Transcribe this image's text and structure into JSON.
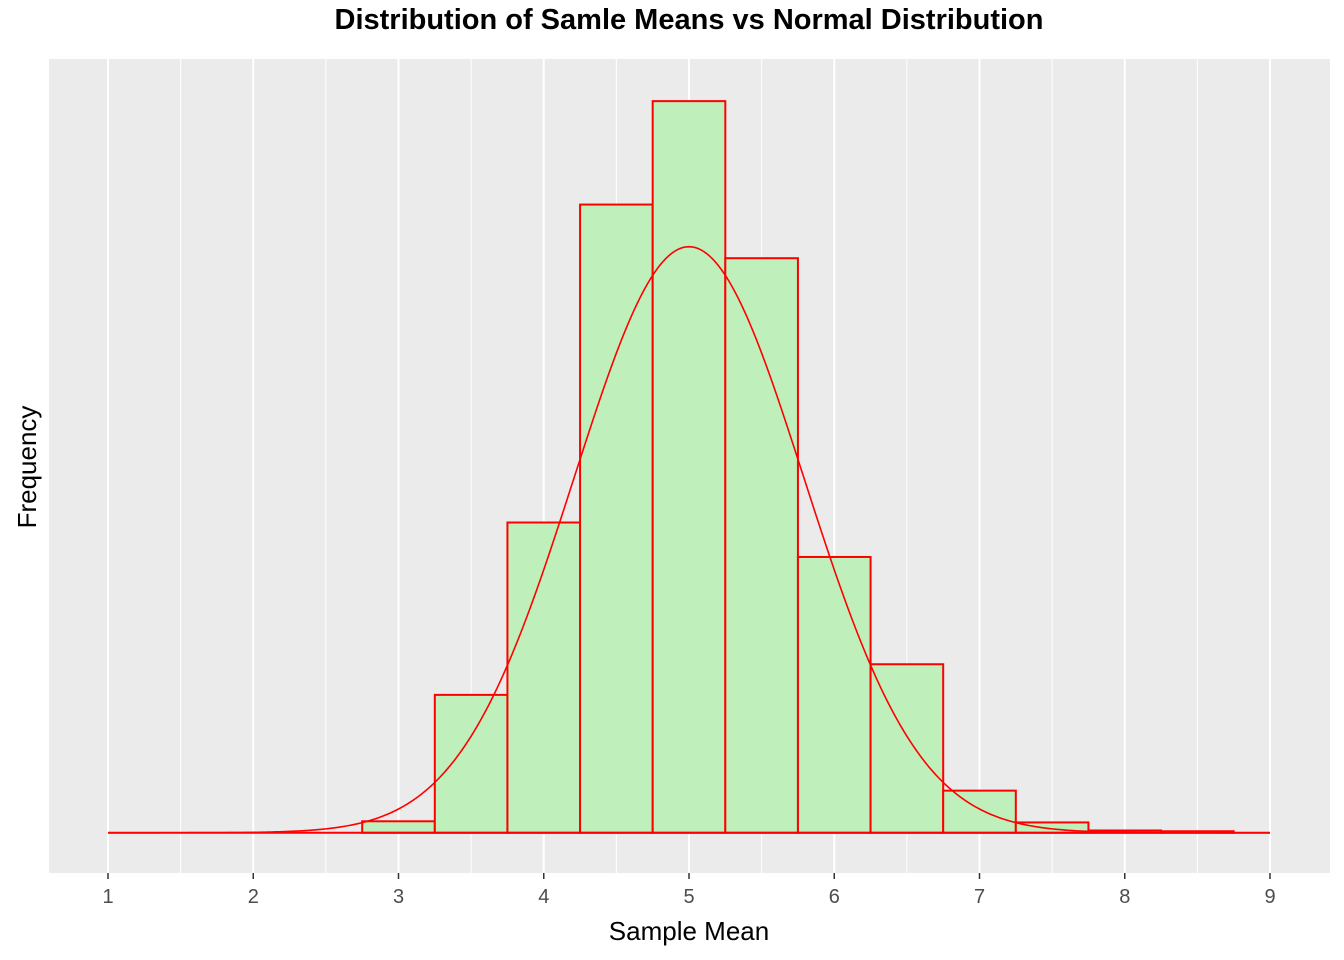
{
  "chart_data": {
    "type": "bar",
    "title": "Distribution of Samle Means vs Normal Distribution",
    "xlabel": "Sample Mean",
    "ylabel": "Frequency",
    "xlim": [
      1,
      9
    ],
    "x_ticks": [
      "1",
      "2",
      "3",
      "4",
      "5",
      "6",
      "7",
      "8",
      "9"
    ],
    "y_ticks_shown": false,
    "grid": true,
    "background": "#EBEBEB",
    "gridline_color": "#FFFFFF",
    "bar_fill": "#BFF0BC",
    "bar_stroke": "#FF0000",
    "curve_color": "#FF0000",
    "bin_width": 0.5,
    "bins": [
      {
        "x0": 2.75,
        "x1": 3.25,
        "value": 3
      },
      {
        "x0": 3.25,
        "x1": 3.75,
        "value": 36
      },
      {
        "x0": 3.75,
        "x1": 4.25,
        "value": 81
      },
      {
        "x0": 4.25,
        "x1": 4.75,
        "value": 164
      },
      {
        "x0": 4.75,
        "x1": 5.25,
        "value": 191
      },
      {
        "x0": 5.25,
        "x1": 5.75,
        "value": 150
      },
      {
        "x0": 5.75,
        "x1": 6.25,
        "value": 72
      },
      {
        "x0": 6.25,
        "x1": 6.75,
        "value": 44
      },
      {
        "x0": 6.75,
        "x1": 7.25,
        "value": 11
      },
      {
        "x0": 7.25,
        "x1": 7.75,
        "value": 2.7
      },
      {
        "x0": 7.75,
        "x1": 8.25,
        "value": 0.6
      },
      {
        "x0": 8.25,
        "x1": 8.75,
        "value": 0.4
      }
    ],
    "normal_curve": {
      "mean": 5.0,
      "sd": 0.79,
      "peak": 153
    },
    "ylim": [
      -10.5,
      202
    ]
  }
}
